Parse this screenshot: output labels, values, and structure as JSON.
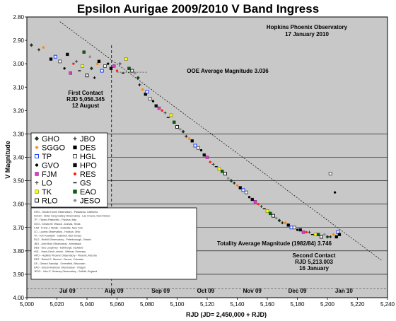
{
  "chart_data": {
    "type": "scatter",
    "title": "Epsilon Aurigae 2009/2010 V Band Ingress",
    "xlabel": "RJD  (JD= 2,450,000 + RJD)",
    "ylabel": "V Magnitude",
    "xlim": [
      5000,
      5240
    ],
    "ylim": [
      2.8,
      4.0
    ],
    "y_inverted": true,
    "x_ticks": [
      "5,000",
      "5,020",
      "5,040",
      "5,060",
      "5,080",
      "5,100",
      "5,120",
      "5,140",
      "5,160",
      "5,180",
      "5,200",
      "5,220",
      "5,240"
    ],
    "x_tick_values": [
      5000,
      5020,
      5040,
      5060,
      5080,
      5100,
      5120,
      5140,
      5160,
      5180,
      5200,
      5220,
      5240
    ],
    "y_ticks": [
      "2.80",
      "2.90",
      "3.00",
      "3.10",
      "3.20",
      "3.30",
      "3.40",
      "3.50",
      "3.60",
      "3.70",
      "3.80",
      "3.90",
      "4.00"
    ],
    "y_tick_values": [
      2.8,
      2.9,
      3.0,
      3.1,
      3.2,
      3.3,
      3.4,
      3.5,
      3.6,
      3.7,
      3.8,
      3.9,
      4.0
    ],
    "grid_y_from": 3.3,
    "months": [
      {
        "label": "Jul 09",
        "x": 5027
      },
      {
        "label": "Aug 09",
        "x": 5058
      },
      {
        "label": "Sep 09",
        "x": 5089
      },
      {
        "label": "Oct 09",
        "x": 5119
      },
      {
        "label": "Nov 09",
        "x": 5150
      },
      {
        "label": "Dec 09",
        "x": 5180
      },
      {
        "label": "Jan 10",
        "x": 5211
      }
    ],
    "annotations": {
      "observatory": "Hopkins Phoenix Observatory",
      "date": "17 January 2010",
      "ooe_average": "OOE Average Magnitude 3.036",
      "first_contact_title": "First Contact",
      "first_contact_rjd": "RJD 5,056.345",
      "first_contact_date": "12 August",
      "totality_average": "Totality Average Magnitude (1982/84) 3.746",
      "second_contact_title": "Second Contact",
      "second_contact_rjd": "RJD 5,213.003",
      "second_contact_date": "16 January"
    },
    "first_contact_x": 5056.345,
    "second_contact_x": 5213.003,
    "ooe_magnitude": 3.036,
    "totality_magnitude": 3.746,
    "trend_line": [
      [
        5022,
        2.82
      ],
      [
        5236,
        3.84
      ]
    ],
    "legend": [
      {
        "code": "GHO",
        "symbol": "diamond",
        "color": "#1a3a1a"
      },
      {
        "code": "JBO",
        "symbol": "plus",
        "color": "#000000"
      },
      {
        "code": "SGGO",
        "symbol": "star",
        "color": "#ff8800"
      },
      {
        "code": "DES",
        "symbol": "square",
        "color": "#000000"
      },
      {
        "code": "TP",
        "symbol": "sq-open",
        "color": "#1f3fff"
      },
      {
        "code": "HGL",
        "symbol": "sq-open",
        "color": "#555555"
      },
      {
        "code": "GVO",
        "symbol": "dot",
        "color": "#000000"
      },
      {
        "code": "HPO",
        "symbol": "square",
        "color": "#0a0a0a"
      },
      {
        "code": "FJM",
        "symbol": "square",
        "color": "#ee2ee0"
      },
      {
        "code": "RES",
        "symbol": "dot",
        "color": "#ff2200"
      },
      {
        "code": "LO",
        "symbol": "plus",
        "color": "#333333"
      },
      {
        "code": "GS",
        "symbol": "dash",
        "color": "#000000"
      },
      {
        "code": "TK",
        "symbol": "square",
        "color": "#ffff00"
      },
      {
        "code": "EAO",
        "symbol": "square",
        "color": "#006400"
      },
      {
        "code": "RLO",
        "symbol": "sq-open",
        "color": "#222222"
      },
      {
        "code": "JESO",
        "symbol": "star",
        "color": "#888888"
      }
    ],
    "series_points": [
      [
        5003,
        2.92
      ],
      [
        5008,
        2.94
      ],
      [
        5011,
        2.93
      ],
      [
        5016,
        2.98
      ],
      [
        5019,
        2.97
      ],
      [
        5022,
        2.99
      ],
      [
        5025,
        3.02
      ],
      [
        5027,
        2.96
      ],
      [
        5029,
        3.04
      ],
      [
        5031,
        3.0
      ],
      [
        5033,
        2.99
      ],
      [
        5035,
        3.03
      ],
      [
        5037,
        3.01
      ],
      [
        5038,
        2.95
      ],
      [
        5040,
        3.05
      ],
      [
        5042,
        2.97
      ],
      [
        5043,
        3.02
      ],
      [
        5045,
        3.06
      ],
      [
        5047,
        3.0
      ],
      [
        5048,
        2.99
      ],
      [
        5050,
        3.03
      ],
      [
        5052,
        3.01
      ],
      [
        5054,
        3.0
      ],
      [
        5056,
        3.02
      ],
      [
        5058,
        3.01
      ],
      [
        5060,
        3.03
      ],
      [
        5062,
        3.0
      ],
      [
        5064,
        3.04
      ],
      [
        5066,
        2.98
      ],
      [
        5068,
        3.02
      ],
      [
        5070,
        3.03
      ],
      [
        5072,
        3.04
      ],
      [
        5074,
        3.06
      ],
      [
        5075,
        3.09
      ],
      [
        5077,
        3.11
      ],
      [
        5079,
        3.13
      ],
      [
        5080,
        3.12
      ],
      [
        5082,
        3.15
      ],
      [
        5084,
        3.16
      ],
      [
        5086,
        3.18
      ],
      [
        5088,
        3.19
      ],
      [
        5090,
        3.2
      ],
      [
        5092,
        3.21
      ],
      [
        5094,
        3.23
      ],
      [
        5096,
        3.22
      ],
      [
        5098,
        3.25
      ],
      [
        5100,
        3.27
      ],
      [
        5102,
        3.28
      ],
      [
        5104,
        3.29
      ],
      [
        5106,
        3.31
      ],
      [
        5108,
        3.32
      ],
      [
        5110,
        3.33
      ],
      [
        5112,
        3.35
      ],
      [
        5114,
        3.36
      ],
      [
        5116,
        3.37
      ],
      [
        5118,
        3.39
      ],
      [
        5120,
        3.4
      ],
      [
        5122,
        3.42
      ],
      [
        5124,
        3.43
      ],
      [
        5126,
        3.44
      ],
      [
        5128,
        3.45
      ],
      [
        5130,
        3.46
      ],
      [
        5132,
        3.47
      ],
      [
        5134,
        3.49
      ],
      [
        5136,
        3.5
      ],
      [
        5138,
        3.51
      ],
      [
        5140,
        3.52
      ],
      [
        5142,
        3.53
      ],
      [
        5144,
        3.54
      ],
      [
        5146,
        3.55
      ],
      [
        5148,
        3.57
      ],
      [
        5150,
        3.58
      ],
      [
        5152,
        3.59
      ],
      [
        5154,
        3.6
      ],
      [
        5156,
        3.61
      ],
      [
        5158,
        3.62
      ],
      [
        5160,
        3.63
      ],
      [
        5162,
        3.64
      ],
      [
        5164,
        3.65
      ],
      [
        5166,
        3.66
      ],
      [
        5168,
        3.67
      ],
      [
        5170,
        3.68
      ],
      [
        5172,
        3.68
      ],
      [
        5174,
        3.69
      ],
      [
        5176,
        3.7
      ],
      [
        5178,
        3.7
      ],
      [
        5180,
        3.71
      ],
      [
        5182,
        3.71
      ],
      [
        5184,
        3.72
      ],
      [
        5186,
        3.72
      ],
      [
        5188,
        3.72
      ],
      [
        5190,
        3.73
      ],
      [
        5192,
        3.73
      ],
      [
        5194,
        3.73
      ],
      [
        5196,
        3.74
      ],
      [
        5198,
        3.73
      ],
      [
        5200,
        3.74
      ],
      [
        5202,
        3.74
      ],
      [
        5204,
        3.73
      ],
      [
        5206,
        3.74
      ],
      [
        5207,
        3.72
      ],
      [
        5202,
        3.47
      ],
      [
        5205,
        3.55
      ],
      [
        5208,
        3.73
      ]
    ],
    "observers_text": [
      "GHO - Gerald Horne Observatory - Pasadena, California",
      "SGGO - Sister Gerg Gallery Observatory - Las Cruces, New Mexico",
      "TP - Tiziano Pastorello - Padova, Italy",
      "GVO - Gerald W. Vitsock - Dumas, Texas",
      "FJM - Frank J. Melillo - Holtsville, New York",
      "LO - Loomis Observatory - Hudson, Ohio",
      "TK - Tom Kowalski - Caldwell, New Jersey",
      "RLO - Redhill Observatory - Peterborough, Ontario",
      "JBO - John Briol Observatory - Minnesota",
      "DES - Des Loughney - Edinburgh, Scotland",
      "HGL - Hans-Gerd Lorentz - Weimar, Germany",
      "HPO - Hopkins Phoenix Observatory - Phoenix, Arizona",
      "RES - Robert E. Stencel - Denver, Colorado",
      "GS - Gerard Samolyk - Greenfield, Wisconsin",
      "EAO - Enoch Anderson Observatory - Oregon",
      "JESO - John E. Swinney Observatory - Suffolk, England"
    ]
  }
}
